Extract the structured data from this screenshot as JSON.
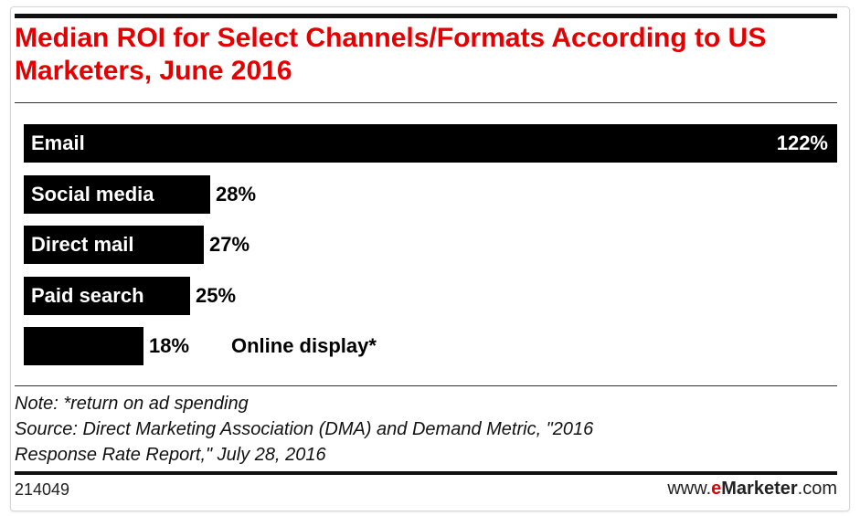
{
  "chart_data": {
    "type": "bar",
    "orientation": "horizontal",
    "title": "Median ROI for Select Channels/Formats According to US Marketers, June 2016",
    "categories": [
      "Email",
      "Social media",
      "Direct mail",
      "Paid search",
      "Online display*"
    ],
    "values": [
      122,
      28,
      27,
      25,
      18
    ],
    "value_labels": [
      "122%",
      "28%",
      "27%",
      "25%",
      "18%"
    ],
    "unit": "%",
    "xlim": [
      0,
      122
    ],
    "grid": false,
    "bar_color": "#000000",
    "title_color": "#e40000"
  },
  "footer": {
    "note": "Note: *return on ad spending",
    "source_line1": "Source: Direct Marketing Association (DMA) and Demand Metric, \"2016",
    "source_line2": "Response Rate Report,\" July 28, 2016",
    "chart_id": "214049",
    "brand_prefix": "www.",
    "brand_e": "e",
    "brand_name": "Marketer",
    "brand_suffix": ".com"
  }
}
